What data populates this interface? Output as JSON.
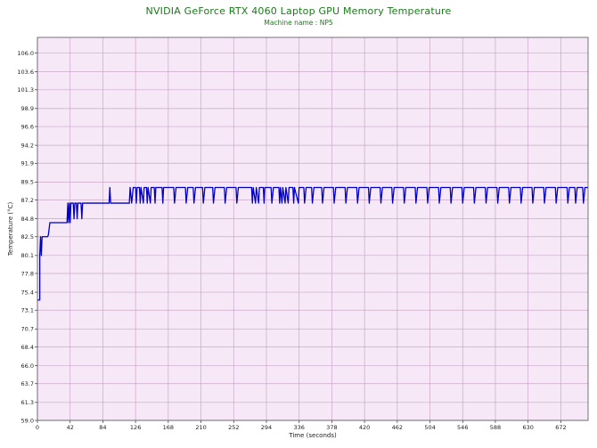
{
  "chart_data": {
    "type": "line",
    "title": "NVIDIA GeForce RTX 4060 Laptop GPU Memory Temperature",
    "subtitle": "Machine name : NP5",
    "xlabel": "Time (seconds)",
    "ylabel": "Temperature (°C)",
    "xlim": [
      0,
      707
    ],
    "ylim": [
      59.0,
      108.0
    ],
    "xticks": [
      0,
      42,
      84,
      126,
      168,
      210,
      252,
      294,
      336,
      378,
      420,
      462,
      504,
      546,
      588,
      630,
      672
    ],
    "yticks": [
      59.0,
      61.3,
      63.7,
      66.0,
      68.4,
      70.7,
      73.1,
      75.4,
      77.8,
      80.1,
      82.5,
      84.8,
      87.2,
      89.5,
      91.9,
      94.2,
      96.6,
      98.9,
      101.3,
      103.6,
      106.0
    ],
    "grid": true,
    "colors": {
      "background": "#f7e8f7",
      "grid": "#c8a8c8",
      "line": "#0000c8",
      "title": "#1a7a1a"
    },
    "series": [
      {
        "values": [
          [
            0,
            74.4
          ],
          [
            3,
            74.4
          ],
          [
            3,
            80.1
          ],
          [
            4,
            82.5
          ],
          [
            5,
            80.1
          ],
          [
            6,
            82.5
          ],
          [
            9,
            82.5
          ],
          [
            10,
            82.5
          ],
          [
            13,
            82.5
          ],
          [
            14,
            82.7
          ],
          [
            16,
            84.3
          ],
          [
            22,
            84.3
          ],
          [
            28,
            84.3
          ],
          [
            36,
            84.3
          ],
          [
            38,
            84.3
          ],
          [
            39,
            86.8
          ],
          [
            40,
            84.3
          ],
          [
            41,
            86.8
          ],
          [
            42,
            84.3
          ],
          [
            43,
            86.8
          ],
          [
            46,
            86.8
          ],
          [
            47,
            84.8
          ],
          [
            48,
            86.8
          ],
          [
            50,
            86.8
          ],
          [
            51,
            84.8
          ],
          [
            52,
            86.8
          ],
          [
            56,
            86.8
          ],
          [
            57,
            84.8
          ],
          [
            58,
            86.8
          ],
          [
            62,
            86.8
          ],
          [
            70,
            86.8
          ],
          [
            80,
            86.8
          ],
          [
            90,
            86.8
          ],
          [
            92,
            86.8
          ],
          [
            93,
            88.8
          ],
          [
            94,
            86.8
          ],
          [
            100,
            86.8
          ],
          [
            110,
            86.8
          ],
          [
            118,
            86.8
          ],
          [
            119,
            88.8
          ],
          [
            121,
            86.8
          ],
          [
            123,
            88.8
          ],
          [
            126,
            88.8
          ],
          [
            127,
            86.8
          ],
          [
            128,
            88.8
          ],
          [
            131,
            88.8
          ],
          [
            132,
            86.8
          ],
          [
            133,
            88.8
          ],
          [
            136,
            86.8
          ],
          [
            137,
            88.8
          ],
          [
            140,
            88.8
          ],
          [
            141,
            86.8
          ],
          [
            142,
            88.8
          ],
          [
            145,
            86.8
          ],
          [
            146,
            88.8
          ],
          [
            150,
            88.8
          ],
          [
            151,
            86.8
          ],
          [
            152,
            88.8
          ],
          [
            160,
            88.8
          ],
          [
            161,
            86.8
          ],
          [
            162,
            88.8
          ],
          [
            175,
            88.8
          ],
          [
            176,
            86.8
          ],
          [
            178,
            88.8
          ],
          [
            190,
            88.8
          ],
          [
            191,
            86.8
          ],
          [
            193,
            88.8
          ],
          [
            200,
            88.8
          ],
          [
            201,
            86.8
          ],
          [
            203,
            88.8
          ],
          [
            212,
            88.8
          ],
          [
            213,
            86.8
          ],
          [
            215,
            88.8
          ],
          [
            225,
            88.8
          ],
          [
            226,
            86.8
          ],
          [
            228,
            88.8
          ],
          [
            240,
            88.8
          ],
          [
            241,
            86.8
          ],
          [
            243,
            88.8
          ],
          [
            255,
            88.8
          ],
          [
            256,
            86.8
          ],
          [
            258,
            88.8
          ],
          [
            275,
            88.8
          ],
          [
            276,
            86.8
          ],
          [
            277,
            88.8
          ],
          [
            280,
            86.8
          ],
          [
            281,
            88.8
          ],
          [
            284,
            86.8
          ],
          [
            285,
            88.8
          ],
          [
            290,
            88.8
          ],
          [
            291,
            86.8
          ],
          [
            292,
            88.8
          ],
          [
            300,
            88.8
          ],
          [
            301,
            86.8
          ],
          [
            303,
            88.8
          ],
          [
            310,
            88.8
          ],
          [
            311,
            86.8
          ],
          [
            312,
            88.8
          ],
          [
            314,
            86.8
          ],
          [
            315,
            88.8
          ],
          [
            318,
            86.8
          ],
          [
            319,
            88.8
          ],
          [
            322,
            86.8
          ],
          [
            323,
            88.8
          ],
          [
            328,
            88.8
          ],
          [
            329,
            86.8
          ],
          [
            330,
            88.8
          ],
          [
            335,
            86.8
          ],
          [
            336,
            88.8
          ],
          [
            342,
            88.8
          ],
          [
            343,
            86.8
          ],
          [
            345,
            88.8
          ],
          [
            352,
            88.8
          ],
          [
            353,
            86.8
          ],
          [
            355,
            88.8
          ],
          [
            365,
            88.8
          ],
          [
            366,
            86.8
          ],
          [
            368,
            88.8
          ],
          [
            380,
            88.8
          ],
          [
            381,
            86.8
          ],
          [
            383,
            88.8
          ],
          [
            395,
            88.8
          ],
          [
            396,
            86.8
          ],
          [
            398,
            88.8
          ],
          [
            410,
            88.8
          ],
          [
            411,
            86.8
          ],
          [
            413,
            88.8
          ],
          [
            425,
            88.8
          ],
          [
            426,
            86.8
          ],
          [
            428,
            88.8
          ],
          [
            440,
            88.8
          ],
          [
            441,
            86.8
          ],
          [
            443,
            88.8
          ],
          [
            455,
            88.8
          ],
          [
            456,
            86.8
          ],
          [
            458,
            88.8
          ],
          [
            470,
            88.8
          ],
          [
            471,
            86.8
          ],
          [
            473,
            88.8
          ],
          [
            485,
            88.8
          ],
          [
            486,
            86.8
          ],
          [
            488,
            88.8
          ],
          [
            500,
            88.8
          ],
          [
            501,
            86.8
          ],
          [
            503,
            88.8
          ],
          [
            515,
            88.8
          ],
          [
            516,
            86.8
          ],
          [
            518,
            88.8
          ],
          [
            530,
            88.8
          ],
          [
            531,
            86.8
          ],
          [
            533,
            88.8
          ],
          [
            545,
            88.8
          ],
          [
            546,
            86.8
          ],
          [
            548,
            88.8
          ],
          [
            560,
            88.8
          ],
          [
            561,
            86.8
          ],
          [
            563,
            88.8
          ],
          [
            575,
            88.8
          ],
          [
            576,
            86.8
          ],
          [
            578,
            88.8
          ],
          [
            590,
            88.8
          ],
          [
            591,
            86.8
          ],
          [
            593,
            88.8
          ],
          [
            605,
            88.8
          ],
          [
            606,
            86.8
          ],
          [
            608,
            88.8
          ],
          [
            620,
            88.8
          ],
          [
            621,
            86.8
          ],
          [
            623,
            88.8
          ],
          [
            635,
            88.8
          ],
          [
            636,
            86.8
          ],
          [
            638,
            88.8
          ],
          [
            650,
            88.8
          ],
          [
            651,
            86.8
          ],
          [
            653,
            88.8
          ],
          [
            665,
            88.8
          ],
          [
            666,
            86.8
          ],
          [
            668,
            88.8
          ],
          [
            680,
            88.8
          ],
          [
            681,
            86.8
          ],
          [
            683,
            88.8
          ],
          [
            690,
            88.8
          ],
          [
            691,
            86.8
          ],
          [
            693,
            88.8
          ],
          [
            700,
            88.8
          ],
          [
            701,
            86.8
          ],
          [
            703,
            88.8
          ],
          [
            707,
            88.8
          ]
        ]
      }
    ]
  }
}
